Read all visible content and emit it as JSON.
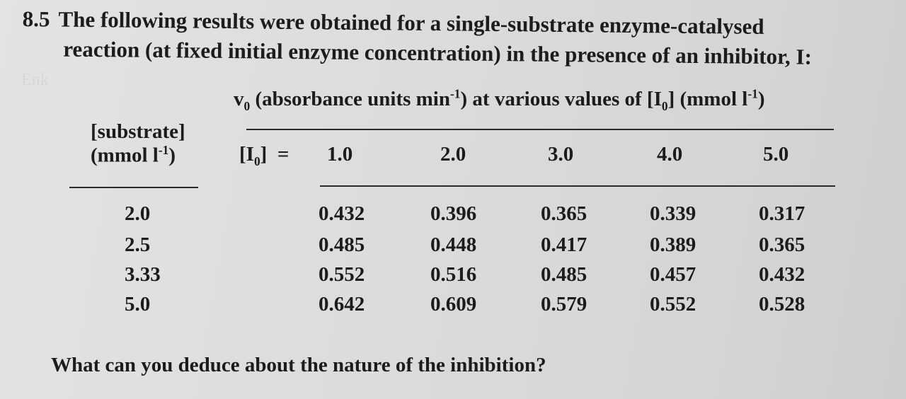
{
  "problem": {
    "number": "8.5",
    "line1": "The following results were obtained for a single-substrate enzyme-catalysed",
    "line2": "reaction (at fixed initial enzyme concentration) in the presence of an inhibitor, I:"
  },
  "table": {
    "rate_header": "v0 (absorbance units min-1) at various values of [I0] (mmol l-1)",
    "substrate_label": "[substrate]",
    "substrate_unit": "(mmol l-1)",
    "inhibitor_label": "[I0] =",
    "inhibitor_concs": [
      "1.0",
      "2.0",
      "3.0",
      "4.0",
      "5.0"
    ],
    "rows": [
      {
        "substrate": "2.0",
        "values": [
          "0.432",
          "0.396",
          "0.365",
          "0.339",
          "0.317"
        ]
      },
      {
        "substrate": "2.5",
        "values": [
          "0.485",
          "0.448",
          "0.417",
          "0.389",
          "0.365"
        ]
      },
      {
        "substrate": "3.33",
        "values": [
          "0.552",
          "0.516",
          "0.485",
          "0.457",
          "0.432"
        ]
      },
      {
        "substrate": "5.0",
        "values": [
          "0.642",
          "0.609",
          "0.579",
          "0.552",
          "0.528"
        ]
      }
    ]
  },
  "question": "What can you deduce about the nature of the inhibition?"
}
